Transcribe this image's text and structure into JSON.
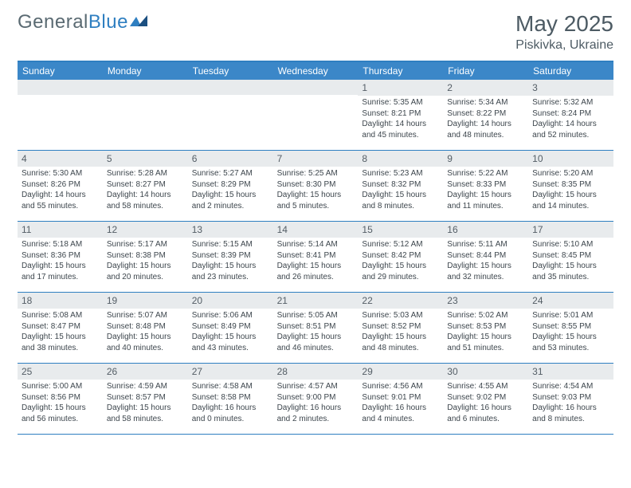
{
  "logo": {
    "text_gray": "General",
    "text_blue": "Blue"
  },
  "title": "May 2025",
  "location": "Piskivka, Ukraine",
  "colors": {
    "header_bar": "#3b87c8",
    "border": "#2f7fc1",
    "daynum_bg": "#e8ebed",
    "text": "#3d464d"
  },
  "dow": [
    "Sunday",
    "Monday",
    "Tuesday",
    "Wednesday",
    "Thursday",
    "Friday",
    "Saturday"
  ],
  "weeks": [
    [
      {
        "n": "",
        "sr": "",
        "ss": "",
        "dl": ""
      },
      {
        "n": "",
        "sr": "",
        "ss": "",
        "dl": ""
      },
      {
        "n": "",
        "sr": "",
        "ss": "",
        "dl": ""
      },
      {
        "n": "",
        "sr": "",
        "ss": "",
        "dl": ""
      },
      {
        "n": "1",
        "sr": "Sunrise: 5:35 AM",
        "ss": "Sunset: 8:21 PM",
        "dl": "Daylight: 14 hours and 45 minutes."
      },
      {
        "n": "2",
        "sr": "Sunrise: 5:34 AM",
        "ss": "Sunset: 8:22 PM",
        "dl": "Daylight: 14 hours and 48 minutes."
      },
      {
        "n": "3",
        "sr": "Sunrise: 5:32 AM",
        "ss": "Sunset: 8:24 PM",
        "dl": "Daylight: 14 hours and 52 minutes."
      }
    ],
    [
      {
        "n": "4",
        "sr": "Sunrise: 5:30 AM",
        "ss": "Sunset: 8:26 PM",
        "dl": "Daylight: 14 hours and 55 minutes."
      },
      {
        "n": "5",
        "sr": "Sunrise: 5:28 AM",
        "ss": "Sunset: 8:27 PM",
        "dl": "Daylight: 14 hours and 58 minutes."
      },
      {
        "n": "6",
        "sr": "Sunrise: 5:27 AM",
        "ss": "Sunset: 8:29 PM",
        "dl": "Daylight: 15 hours and 2 minutes."
      },
      {
        "n": "7",
        "sr": "Sunrise: 5:25 AM",
        "ss": "Sunset: 8:30 PM",
        "dl": "Daylight: 15 hours and 5 minutes."
      },
      {
        "n": "8",
        "sr": "Sunrise: 5:23 AM",
        "ss": "Sunset: 8:32 PM",
        "dl": "Daylight: 15 hours and 8 minutes."
      },
      {
        "n": "9",
        "sr": "Sunrise: 5:22 AM",
        "ss": "Sunset: 8:33 PM",
        "dl": "Daylight: 15 hours and 11 minutes."
      },
      {
        "n": "10",
        "sr": "Sunrise: 5:20 AM",
        "ss": "Sunset: 8:35 PM",
        "dl": "Daylight: 15 hours and 14 minutes."
      }
    ],
    [
      {
        "n": "11",
        "sr": "Sunrise: 5:18 AM",
        "ss": "Sunset: 8:36 PM",
        "dl": "Daylight: 15 hours and 17 minutes."
      },
      {
        "n": "12",
        "sr": "Sunrise: 5:17 AM",
        "ss": "Sunset: 8:38 PM",
        "dl": "Daylight: 15 hours and 20 minutes."
      },
      {
        "n": "13",
        "sr": "Sunrise: 5:15 AM",
        "ss": "Sunset: 8:39 PM",
        "dl": "Daylight: 15 hours and 23 minutes."
      },
      {
        "n": "14",
        "sr": "Sunrise: 5:14 AM",
        "ss": "Sunset: 8:41 PM",
        "dl": "Daylight: 15 hours and 26 minutes."
      },
      {
        "n": "15",
        "sr": "Sunrise: 5:12 AM",
        "ss": "Sunset: 8:42 PM",
        "dl": "Daylight: 15 hours and 29 minutes."
      },
      {
        "n": "16",
        "sr": "Sunrise: 5:11 AM",
        "ss": "Sunset: 8:44 PM",
        "dl": "Daylight: 15 hours and 32 minutes."
      },
      {
        "n": "17",
        "sr": "Sunrise: 5:10 AM",
        "ss": "Sunset: 8:45 PM",
        "dl": "Daylight: 15 hours and 35 minutes."
      }
    ],
    [
      {
        "n": "18",
        "sr": "Sunrise: 5:08 AM",
        "ss": "Sunset: 8:47 PM",
        "dl": "Daylight: 15 hours and 38 minutes."
      },
      {
        "n": "19",
        "sr": "Sunrise: 5:07 AM",
        "ss": "Sunset: 8:48 PM",
        "dl": "Daylight: 15 hours and 40 minutes."
      },
      {
        "n": "20",
        "sr": "Sunrise: 5:06 AM",
        "ss": "Sunset: 8:49 PM",
        "dl": "Daylight: 15 hours and 43 minutes."
      },
      {
        "n": "21",
        "sr": "Sunrise: 5:05 AM",
        "ss": "Sunset: 8:51 PM",
        "dl": "Daylight: 15 hours and 46 minutes."
      },
      {
        "n": "22",
        "sr": "Sunrise: 5:03 AM",
        "ss": "Sunset: 8:52 PM",
        "dl": "Daylight: 15 hours and 48 minutes."
      },
      {
        "n": "23",
        "sr": "Sunrise: 5:02 AM",
        "ss": "Sunset: 8:53 PM",
        "dl": "Daylight: 15 hours and 51 minutes."
      },
      {
        "n": "24",
        "sr": "Sunrise: 5:01 AM",
        "ss": "Sunset: 8:55 PM",
        "dl": "Daylight: 15 hours and 53 minutes."
      }
    ],
    [
      {
        "n": "25",
        "sr": "Sunrise: 5:00 AM",
        "ss": "Sunset: 8:56 PM",
        "dl": "Daylight: 15 hours and 56 minutes."
      },
      {
        "n": "26",
        "sr": "Sunrise: 4:59 AM",
        "ss": "Sunset: 8:57 PM",
        "dl": "Daylight: 15 hours and 58 minutes."
      },
      {
        "n": "27",
        "sr": "Sunrise: 4:58 AM",
        "ss": "Sunset: 8:58 PM",
        "dl": "Daylight: 16 hours and 0 minutes."
      },
      {
        "n": "28",
        "sr": "Sunrise: 4:57 AM",
        "ss": "Sunset: 9:00 PM",
        "dl": "Daylight: 16 hours and 2 minutes."
      },
      {
        "n": "29",
        "sr": "Sunrise: 4:56 AM",
        "ss": "Sunset: 9:01 PM",
        "dl": "Daylight: 16 hours and 4 minutes."
      },
      {
        "n": "30",
        "sr": "Sunrise: 4:55 AM",
        "ss": "Sunset: 9:02 PM",
        "dl": "Daylight: 16 hours and 6 minutes."
      },
      {
        "n": "31",
        "sr": "Sunrise: 4:54 AM",
        "ss": "Sunset: 9:03 PM",
        "dl": "Daylight: 16 hours and 8 minutes."
      }
    ]
  ]
}
